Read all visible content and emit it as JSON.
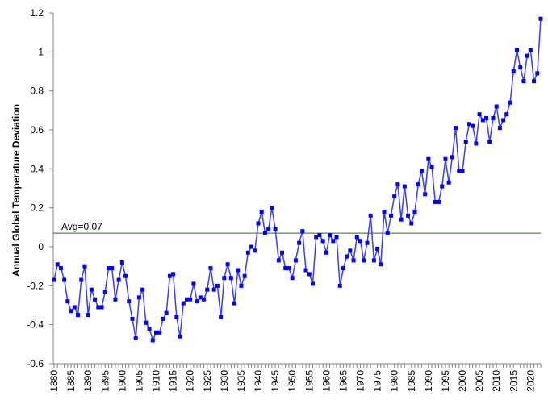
{
  "chart_data": {
    "type": "line",
    "title": "",
    "xlabel": "",
    "ylabel": "Annual Global Temperature Deviation",
    "xlim": [
      1880,
      2023
    ],
    "ylim": [
      -0.6,
      1.2
    ],
    "yticks": [
      -0.6,
      -0.4,
      -0.2,
      0,
      0.2,
      0.4,
      0.6,
      0.8,
      1,
      1.2
    ],
    "ytick_labels": [
      "-0.6",
      "-0.4",
      "-0.2",
      "0",
      "0.2",
      "0.4",
      "0.6",
      "0.8",
      "1",
      "1.2"
    ],
    "xtick_labels": [
      "1880",
      "1885",
      "1890",
      "1895",
      "1900",
      "1905",
      "1910",
      "1915",
      "1920",
      "1925",
      "1930",
      "1935",
      "1940",
      "1945",
      "1950",
      "1955",
      "1960",
      "1965",
      "1970",
      "1975",
      "1980",
      "1985",
      "1990",
      "1995",
      "2000",
      "2005",
      "2010",
      "2015",
      "2020"
    ],
    "grid": false,
    "legend": "none",
    "line_color": "#3b3bff",
    "marker_color": "#0000ff",
    "average": {
      "value": 0.07,
      "label": "Avg=0.07",
      "color": "#2a6e1e"
    },
    "x_start": 1880,
    "values": [
      -0.17,
      -0.09,
      -0.11,
      -0.17,
      -0.28,
      -0.33,
      -0.31,
      -0.35,
      -0.17,
      -0.1,
      -0.35,
      -0.22,
      -0.27,
      -0.31,
      -0.31,
      -0.23,
      -0.11,
      -0.11,
      -0.27,
      -0.17,
      -0.08,
      -0.15,
      -0.28,
      -0.37,
      -0.47,
      -0.26,
      -0.22,
      -0.39,
      -0.42,
      -0.48,
      -0.44,
      -0.44,
      -0.37,
      -0.34,
      -0.15,
      -0.14,
      -0.36,
      -0.46,
      -0.29,
      -0.27,
      -0.27,
      -0.19,
      -0.28,
      -0.26,
      -0.27,
      -0.22,
      -0.11,
      -0.22,
      -0.2,
      -0.36,
      -0.16,
      -0.09,
      -0.16,
      -0.29,
      -0.12,
      -0.2,
      -0.15,
      -0.03,
      0.0,
      -0.02,
      0.12,
      0.18,
      0.07,
      0.09,
      0.2,
      0.09,
      -0.07,
      -0.03,
      -0.11,
      -0.11,
      -0.16,
      -0.07,
      0.02,
      0.08,
      -0.12,
      -0.14,
      -0.19,
      0.05,
      0.06,
      0.03,
      -0.03,
      0.06,
      0.03,
      0.05,
      -0.2,
      -0.11,
      -0.05,
      -0.02,
      -0.07,
      0.05,
      0.03,
      -0.07,
      0.02,
      0.16,
      -0.07,
      -0.01,
      -0.09,
      0.18,
      0.07,
      0.16,
      0.26,
      0.32,
      0.14,
      0.31,
      0.16,
      0.12,
      0.18,
      0.32,
      0.39,
      0.27,
      0.45,
      0.41,
      0.23,
      0.23,
      0.31,
      0.45,
      0.33,
      0.46,
      0.61,
      0.39,
      0.39,
      0.54,
      0.63,
      0.62,
      0.53,
      0.68,
      0.65,
      0.66,
      0.54,
      0.66,
      0.72,
      0.61,
      0.65,
      0.68,
      0.74,
      0.9,
      1.01,
      0.92,
      0.85,
      0.98,
      1.01,
      0.85,
      0.89,
      1.17
    ]
  }
}
